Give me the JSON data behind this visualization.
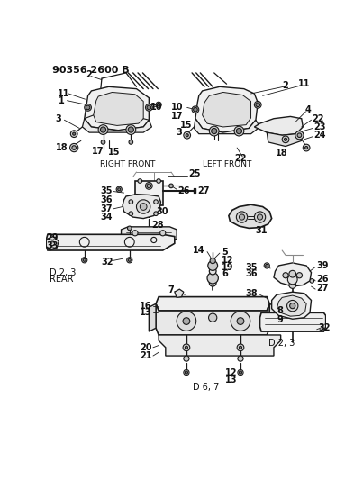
{
  "title": "90356 2600 B",
  "bg_color": "#ffffff",
  "line_color": "#1a1a1a",
  "text_color": "#111111",
  "figsize": [
    4.03,
    5.33
  ],
  "dpi": 100,
  "sections": {
    "right_front_label": "RIGHT FRONT",
    "left_front_label": "LEFT FRONT",
    "rear_label": "REAR",
    "d23_label1": "D 2, 3",
    "d67_label": "D 6, 7",
    "d23_label2": "D 2, 3"
  }
}
